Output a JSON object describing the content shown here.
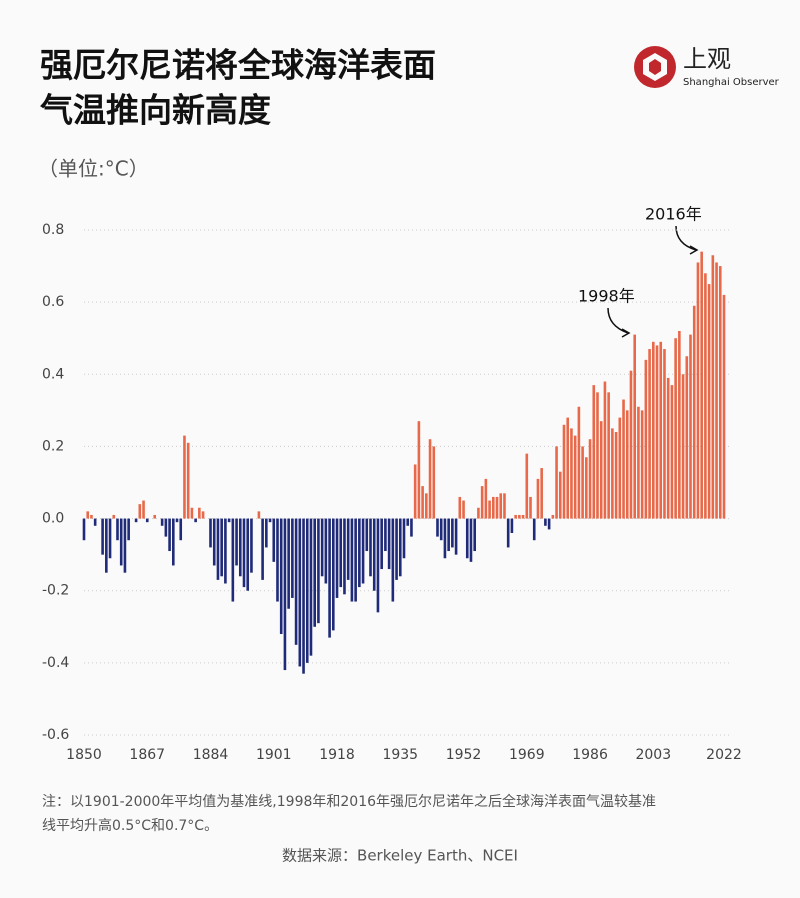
{
  "chart_data": {
    "type": "bar",
    "title_lines": [
      "强厄尔尼诺将全球海洋表面",
      "气温推向新高度"
    ],
    "subtitle": "（单位:°C）",
    "logo": {
      "name": "上观",
      "subname": "Shanghai Observer"
    },
    "x": [
      1850,
      1851,
      1852,
      1853,
      1854,
      1855,
      1856,
      1857,
      1858,
      1859,
      1860,
      1861,
      1862,
      1863,
      1864,
      1865,
      1866,
      1867,
      1868,
      1869,
      1870,
      1871,
      1872,
      1873,
      1874,
      1875,
      1876,
      1877,
      1878,
      1879,
      1880,
      1881,
      1882,
      1883,
      1884,
      1885,
      1886,
      1887,
      1888,
      1889,
      1890,
      1891,
      1892,
      1893,
      1894,
      1895,
      1896,
      1897,
      1898,
      1899,
      1900,
      1901,
      1902,
      1903,
      1904,
      1905,
      1906,
      1907,
      1908,
      1909,
      1910,
      1911,
      1912,
      1913,
      1914,
      1915,
      1916,
      1917,
      1918,
      1919,
      1920,
      1921,
      1922,
      1923,
      1924,
      1925,
      1926,
      1927,
      1928,
      1929,
      1930,
      1931,
      1932,
      1933,
      1934,
      1935,
      1936,
      1937,
      1938,
      1939,
      1940,
      1941,
      1942,
      1943,
      1944,
      1945,
      1946,
      1947,
      1948,
      1949,
      1950,
      1951,
      1952,
      1953,
      1954,
      1955,
      1956,
      1957,
      1958,
      1959,
      1960,
      1961,
      1962,
      1963,
      1964,
      1965,
      1966,
      1967,
      1968,
      1969,
      1970,
      1971,
      1972,
      1973,
      1974,
      1975,
      1976,
      1977,
      1978,
      1979,
      1980,
      1981,
      1982,
      1983,
      1984,
      1985,
      1986,
      1987,
      1988,
      1989,
      1990,
      1991,
      1992,
      1993,
      1994,
      1995,
      1996,
      1997,
      1998,
      1999,
      2000,
      2001,
      2002,
      2003,
      2004,
      2005,
      2006,
      2007,
      2008,
      2009,
      2010,
      2011,
      2012,
      2013,
      2014,
      2015,
      2016,
      2017,
      2018,
      2019,
      2020,
      2021,
      2022
    ],
    "values": [
      -0.06,
      0.02,
      0.01,
      -0.02,
      0.0,
      -0.1,
      -0.15,
      -0.11,
      0.01,
      -0.06,
      -0.13,
      -0.15,
      -0.06,
      0.0,
      -0.01,
      0.04,
      0.05,
      -0.01,
      0.0,
      0.01,
      0.0,
      -0.02,
      -0.05,
      -0.09,
      -0.13,
      -0.01,
      -0.06,
      0.23,
      0.21,
      0.03,
      -0.01,
      0.03,
      0.02,
      0.0,
      -0.08,
      -0.13,
      -0.17,
      -0.16,
      -0.18,
      -0.01,
      -0.23,
      -0.13,
      -0.16,
      -0.19,
      -0.2,
      -0.15,
      0.0,
      0.02,
      -0.17,
      -0.08,
      -0.01,
      -0.12,
      -0.23,
      -0.32,
      -0.42,
      -0.25,
      -0.22,
      -0.35,
      -0.41,
      -0.43,
      -0.4,
      -0.38,
      -0.3,
      -0.29,
      -0.16,
      -0.18,
      -0.33,
      -0.31,
      -0.22,
      -0.19,
      -0.21,
      -0.17,
      -0.23,
      -0.23,
      -0.19,
      -0.18,
      -0.09,
      -0.16,
      -0.2,
      -0.26,
      -0.14,
      -0.09,
      -0.14,
      -0.23,
      -0.17,
      -0.16,
      -0.11,
      -0.02,
      -0.05,
      0.15,
      0.27,
      0.09,
      0.07,
      0.22,
      0.2,
      -0.05,
      -0.06,
      -0.11,
      -0.09,
      -0.08,
      -0.1,
      0.06,
      0.05,
      -0.11,
      -0.12,
      -0.09,
      0.03,
      0.09,
      0.11,
      0.05,
      0.06,
      0.06,
      0.07,
      0.07,
      -0.08,
      -0.04,
      0.01,
      0.01,
      0.01,
      0.18,
      0.06,
      -0.06,
      0.11,
      0.14,
      -0.02,
      -0.03,
      0.01,
      0.2,
      0.13,
      0.26,
      0.28,
      0.25,
      0.23,
      0.31,
      0.2,
      0.17,
      0.22,
      0.37,
      0.35,
      0.27,
      0.38,
      0.35,
      0.25,
      0.24,
      0.28,
      0.33,
      0.3,
      0.41,
      0.51,
      0.31,
      0.3,
      0.44,
      0.47,
      0.49,
      0.48,
      0.49,
      0.47,
      0.39,
      0.37,
      0.5,
      0.52,
      0.4,
      0.45,
      0.51,
      0.59,
      0.71,
      0.74,
      0.68,
      0.65,
      0.73,
      0.71,
      0.7,
      0.62
    ],
    "positive_color": "#e8694a",
    "negative_color": "#1f2a78",
    "xlim": [
      1850,
      2022
    ],
    "xticks": [
      1850,
      1867,
      1884,
      1901,
      1918,
      1935,
      1952,
      1969,
      1986,
      2003,
      2022
    ],
    "ylim": [
      -0.6,
      0.8
    ],
    "yticks": [
      0.8,
      0.6,
      0.4,
      0.2,
      {
        "value": 0,
        "label": "0.0"
      },
      -0.2,
      -0.4,
      -0.6
    ],
    "grid": true,
    "annotations": [
      "2016年",
      "1998年"
    ],
    "note": [
      "注：以1901-2000年平均值为基准线,1998年和2016年强厄尔尼诺年之后全球海洋表面气温较基准",
      "线平均升高0.5°C和0.7°C。"
    ],
    "source": "数据来源：Berkeley Earth、NCEI"
  }
}
